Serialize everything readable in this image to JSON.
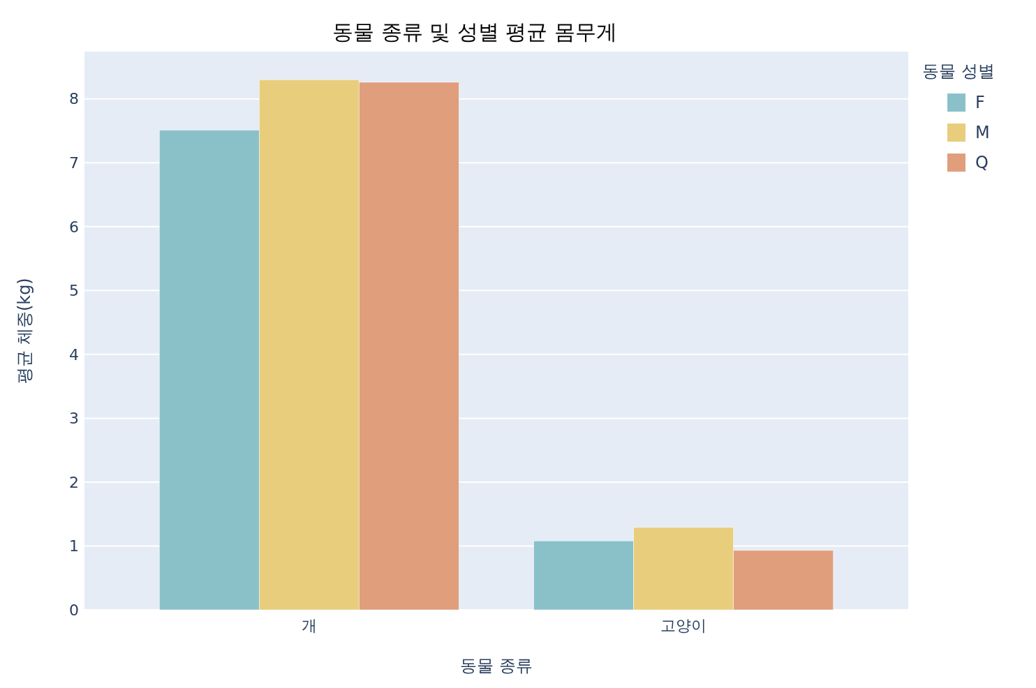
{
  "chart_data": {
    "type": "bar",
    "title": "동물 종류 및 성별 평균 몸무게",
    "xlabel": "동물 종류",
    "ylabel": "평균 체중(kg)",
    "legend_title": "동물 성별",
    "categories": [
      "개",
      "고양이"
    ],
    "series": [
      {
        "name": "F",
        "color": "#8ac1c9",
        "values": [
          7.51,
          1.08
        ]
      },
      {
        "name": "M",
        "color": "#e8cd7d",
        "values": [
          8.3,
          1.29
        ]
      },
      {
        "name": "Q",
        "color": "#e09e7c",
        "values": [
          8.26,
          0.93
        ]
      }
    ],
    "ylim": [
      0,
      8.74
    ],
    "yticks": [
      0,
      1,
      2,
      3,
      4,
      5,
      6,
      7,
      8
    ],
    "grid": "y",
    "legend": "top right"
  }
}
